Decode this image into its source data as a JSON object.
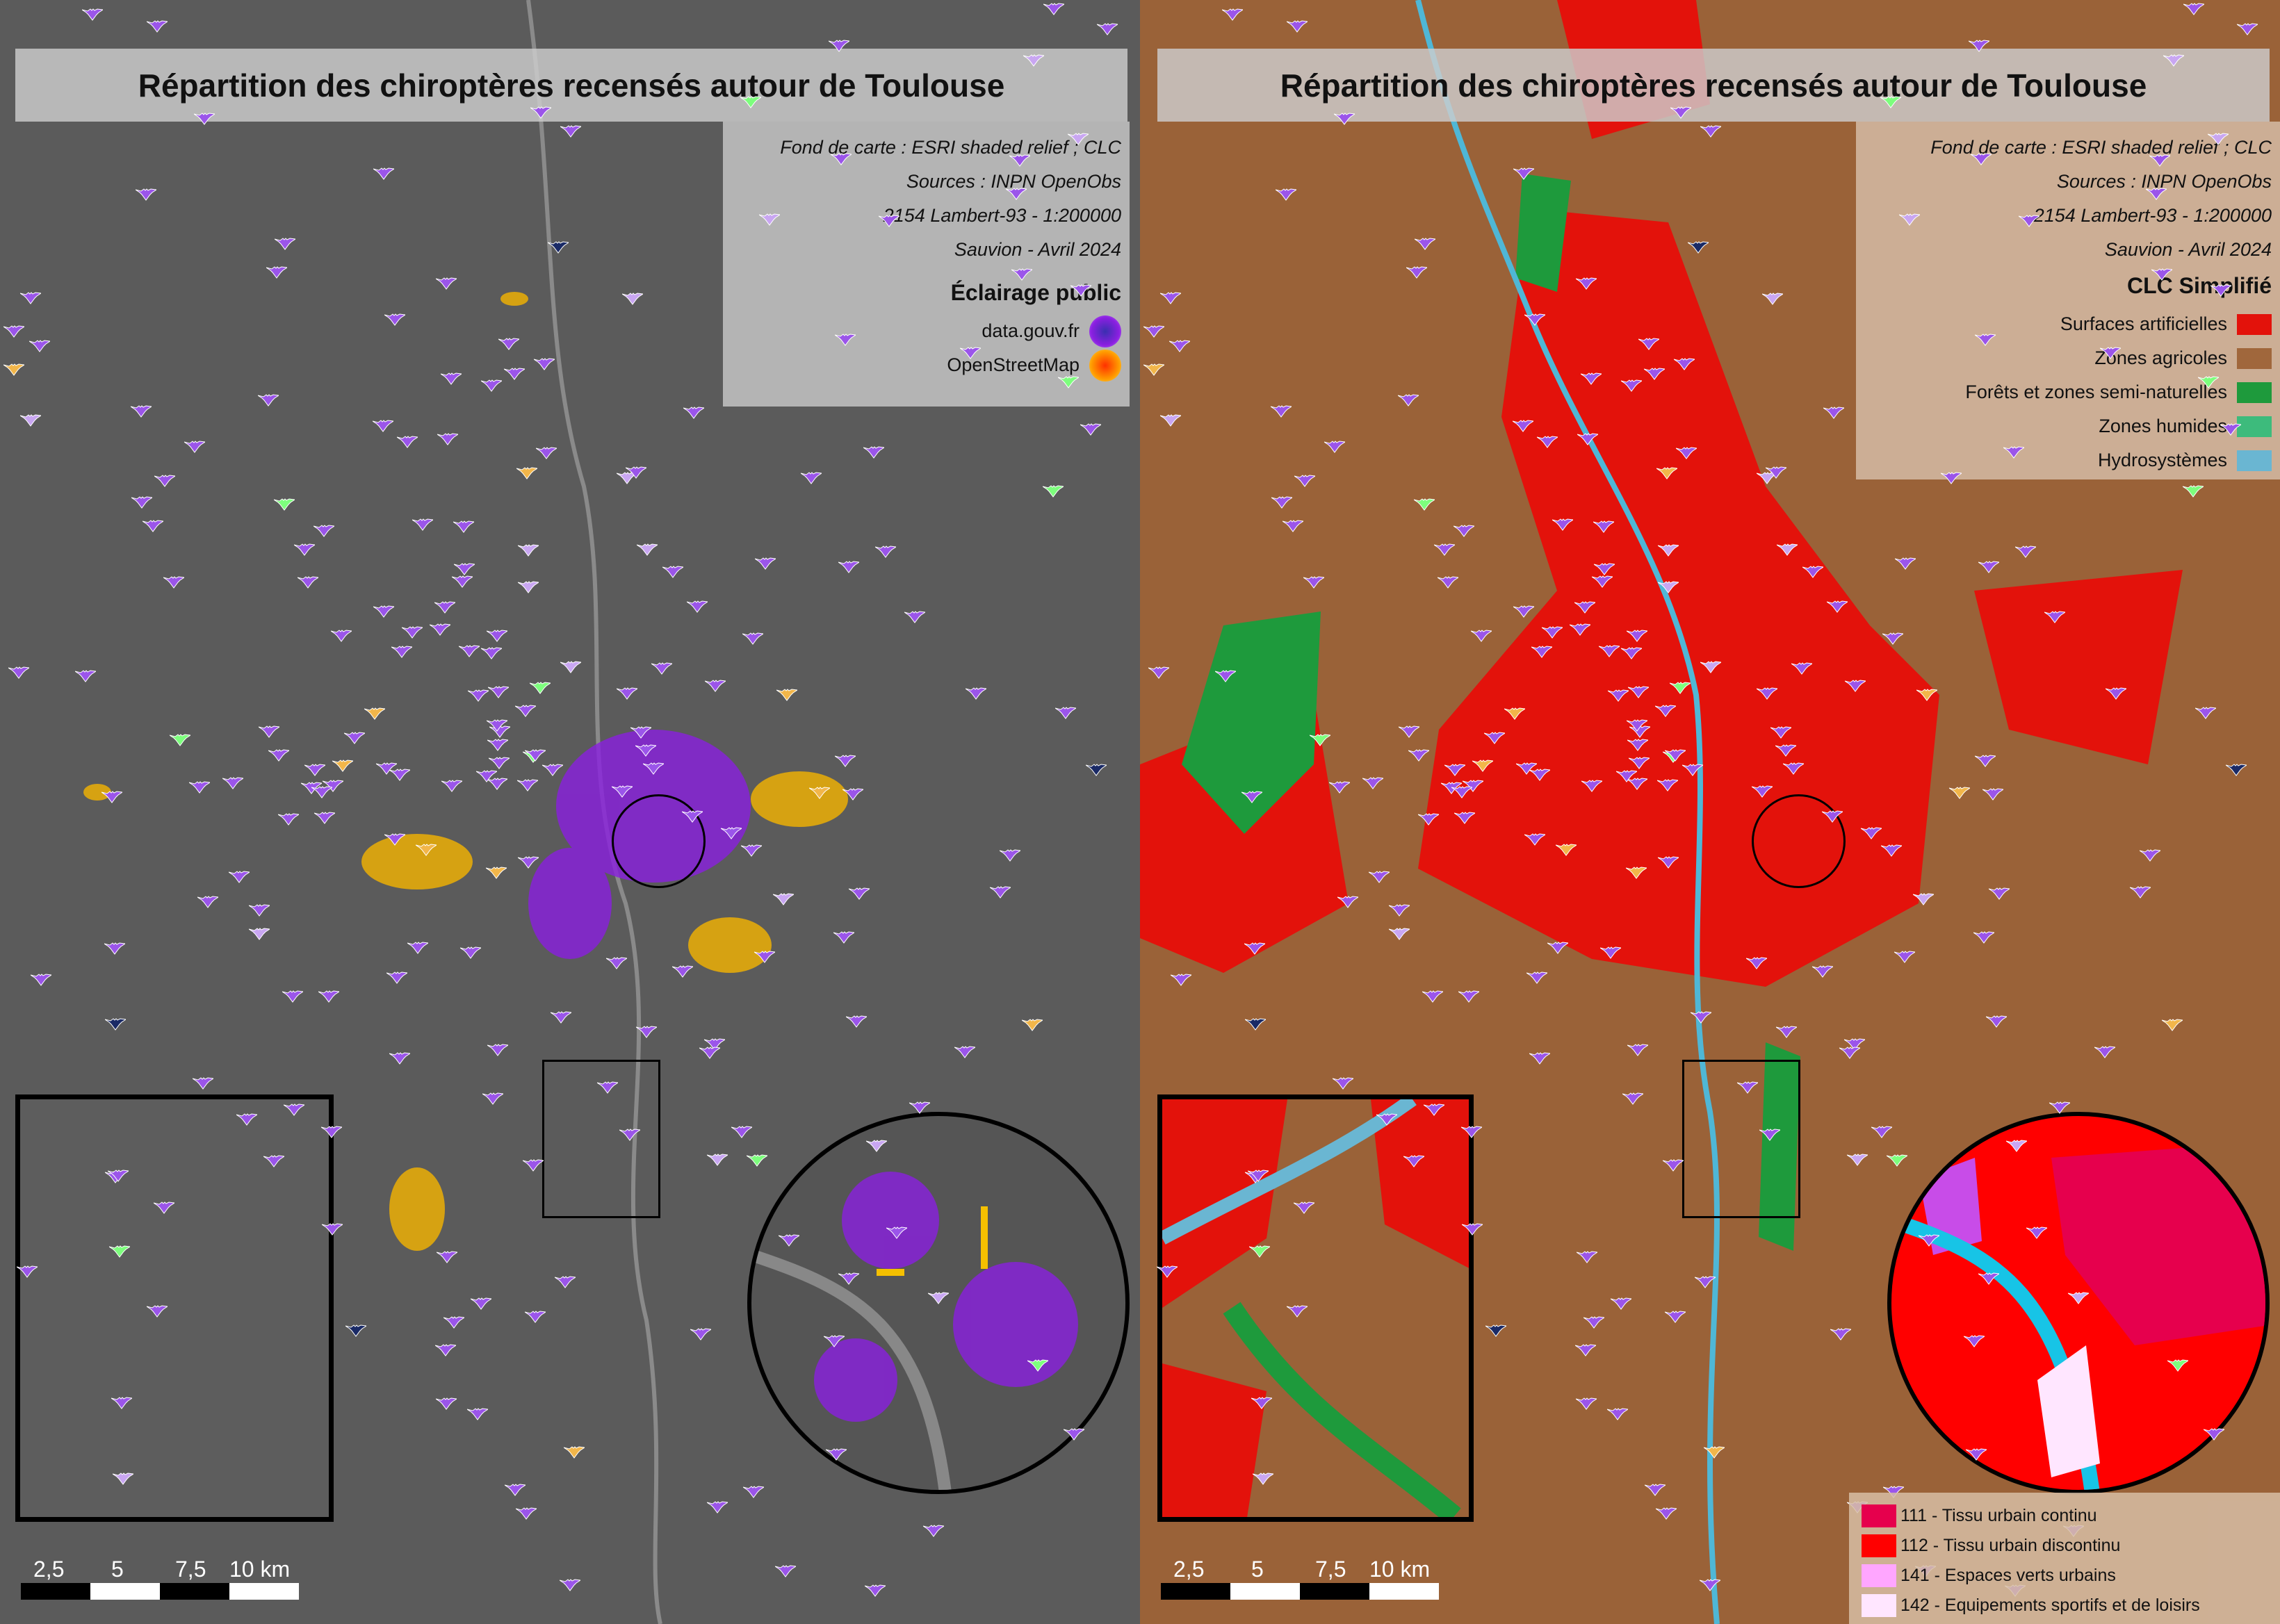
{
  "title": "Répartition des chiroptères recensés autour de Toulouse",
  "credits": [
    "Fond de carte : ESRI shaded relief ; CLC",
    "Sources : INPN OpenObs",
    "2154 Lambert-93 - 1:200000",
    "Sauvion - Avril 2024"
  ],
  "left_legend": {
    "title": "Éclairage public",
    "items": [
      {
        "label": "data.gouv.fr",
        "color": "#7a1fd6"
      },
      {
        "label": "OpenStreetMap",
        "color": "#ff9a00"
      }
    ]
  },
  "right_legend": {
    "title": "CLC Simplifié",
    "items": [
      {
        "label": "Surfaces artificielles",
        "color": "#e3120b"
      },
      {
        "label": "Zones agricoles",
        "color": "#a0673c"
      },
      {
        "label": "Forêts et zones semi-naturelles",
        "color": "#1e9a3c"
      },
      {
        "label": "Zones humides",
        "color": "#3dbb7c"
      },
      {
        "label": "Hydrosystèmes",
        "color": "#6ab6d2"
      }
    ]
  },
  "clc_detail_legend": [
    {
      "label": "111 - Tissu urbain continu",
      "color": "#e6004d"
    },
    {
      "label": "112 - Tissu urbain discontinu",
      "color": "#ff0000"
    },
    {
      "label": "141 - Espaces verts urbains",
      "color": "#ffa6ff"
    },
    {
      "label": "142 - Equipements sportifs et de loisirs",
      "color": "#ffe6ff"
    }
  ],
  "scale_bar": {
    "labels": [
      "2,5",
      "5",
      "7,5",
      "10 km"
    ]
  },
  "bat_colors": {
    "main": "#9b55ea",
    "light": "#c9a6f2",
    "green": "#7dff7d",
    "orange": "#f2b64a",
    "navy": "#1a2a66"
  }
}
